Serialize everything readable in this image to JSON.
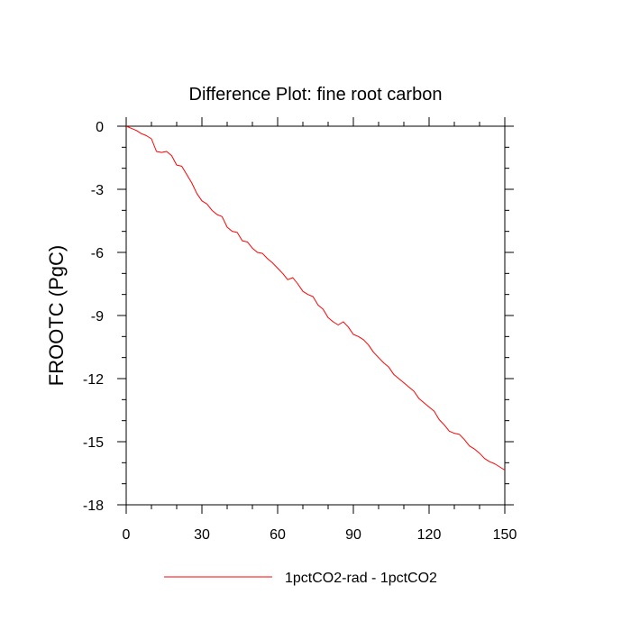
{
  "chart_data": {
    "type": "line",
    "title": "Difference Plot: fine root carbon",
    "xlabel": "",
    "ylabel": "FROOTC  (PgC)",
    "xlim": [
      0,
      150
    ],
    "ylim": [
      -18,
      0
    ],
    "xticks": [
      0,
      30,
      60,
      90,
      120,
      150
    ],
    "yticks": [
      0,
      -3,
      -6,
      -9,
      -12,
      -15,
      -18
    ],
    "xtick_labels": [
      "0",
      "30",
      "60",
      "90",
      "120",
      "150"
    ],
    "ytick_labels": [
      "0",
      "-3",
      "-6",
      "-9",
      "-12",
      "-15",
      "-18"
    ],
    "grid": false,
    "legend_position": "bottom",
    "series": [
      {
        "name": "1pctCO2-rad - 1pctCO2",
        "color": "#ff0000",
        "x": [
          0,
          2,
          4,
          6,
          8,
          10,
          12,
          14,
          16,
          18,
          20,
          22,
          24,
          26,
          28,
          30,
          32,
          34,
          36,
          38,
          40,
          42,
          44,
          46,
          48,
          50,
          52,
          54,
          56,
          58,
          60,
          62,
          64,
          66,
          68,
          70,
          72,
          74,
          76,
          78,
          80,
          82,
          84,
          86,
          88,
          90,
          92,
          94,
          96,
          98,
          100,
          102,
          104,
          106,
          108,
          110,
          112,
          114,
          116,
          118,
          120,
          122,
          124,
          126,
          128,
          130,
          132,
          134,
          136,
          138,
          140,
          142,
          144,
          146,
          148,
          150
        ],
        "y": [
          0,
          -0.1,
          -0.2,
          -0.35,
          -0.45,
          -0.6,
          -1.2,
          -1.25,
          -1.2,
          -1.4,
          -1.85,
          -1.9,
          -2.3,
          -2.7,
          -3.2,
          -3.55,
          -3.7,
          -4.0,
          -4.2,
          -4.3,
          -4.8,
          -5.0,
          -5.05,
          -5.45,
          -5.5,
          -5.8,
          -6.0,
          -6.05,
          -6.3,
          -6.5,
          -6.75,
          -7.0,
          -7.3,
          -7.2,
          -7.5,
          -7.85,
          -8.0,
          -8.1,
          -8.5,
          -8.7,
          -9.1,
          -9.3,
          -9.45,
          -9.3,
          -9.55,
          -9.9,
          -10.0,
          -10.15,
          -10.4,
          -10.75,
          -11.0,
          -11.25,
          -11.45,
          -11.8,
          -12.0,
          -12.2,
          -12.4,
          -12.6,
          -12.95,
          -13.15,
          -13.35,
          -13.55,
          -13.95,
          -14.2,
          -14.5,
          -14.6,
          -14.65,
          -14.9,
          -15.2,
          -15.35,
          -15.55,
          -15.8,
          -15.95,
          -16.05,
          -16.2,
          -16.35
        ]
      }
    ]
  }
}
